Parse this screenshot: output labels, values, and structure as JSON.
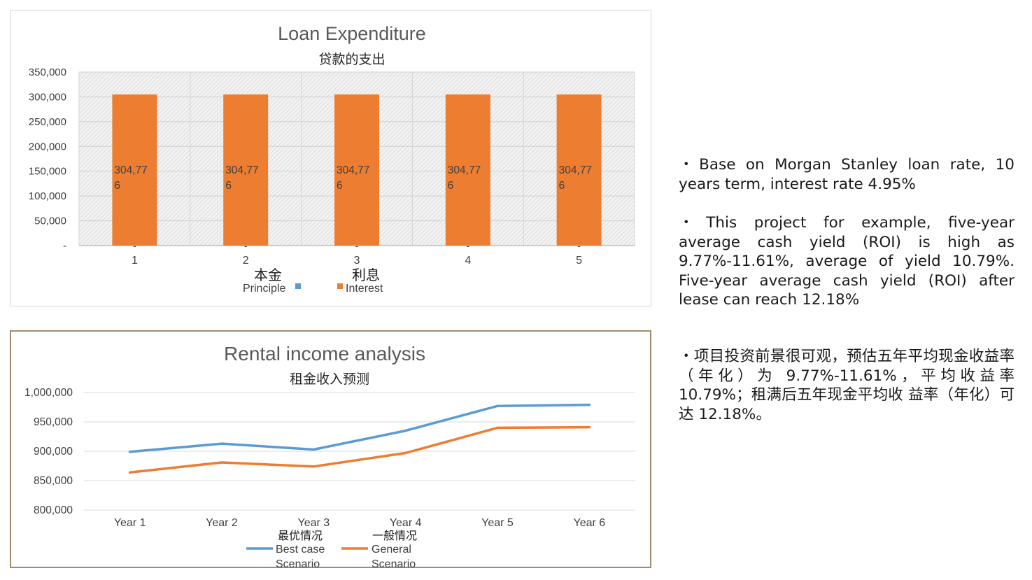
{
  "chart_data": [
    {
      "type": "bar",
      "title": "Loan Expenditure",
      "subtitle": "贷款的支出",
      "categories": [
        "1",
        "2",
        "3",
        "4",
        "5"
      ],
      "category_sublabels": [
        "-",
        "-",
        "-",
        "-",
        "-"
      ],
      "ylim": [
        0,
        350000
      ],
      "yticks": [
        0,
        50000,
        100000,
        150000,
        200000,
        250000,
        300000,
        350000
      ],
      "ytick_labels": [
        "-",
        "50,000",
        "100,000",
        "150,000",
        "200,000",
        "250,000",
        "300,000",
        "350,000"
      ],
      "grid": true,
      "series": [
        {
          "name": "Principle",
          "name_cn": "本金",
          "color": "#5b9bd5",
          "values": [
            0,
            0,
            0,
            0,
            0
          ]
        },
        {
          "name": "Interest",
          "name_cn": "利息",
          "color": "#ed7d31",
          "values": [
            304776,
            304776,
            304776,
            304776,
            304776
          ],
          "data_labels": [
            [
              "304,77",
              "6"
            ],
            [
              "304,77",
              "6"
            ],
            [
              "304,77",
              "6"
            ],
            [
              "304,77",
              "6"
            ],
            [
              "304,77",
              "6"
            ]
          ]
        }
      ],
      "legend_position": "bottom"
    },
    {
      "type": "line",
      "title": "Rental income analysis",
      "subtitle": "租金收入预测",
      "categories": [
        "Year 1",
        "Year 2",
        "Year 3",
        "Year 4",
        "Year 5",
        "Year 6"
      ],
      "ylim": [
        800000,
        1000000
      ],
      "yticks": [
        800000,
        850000,
        900000,
        950000,
        1000000
      ],
      "ytick_labels": [
        "800,000",
        "850,000",
        "900,000",
        "950,000",
        "1,000,000"
      ],
      "grid": true,
      "series": [
        {
          "name_cn": "最优情况",
          "name": [
            "Best case",
            "Scenario"
          ],
          "color": "#5b9bd5",
          "values": [
            899000,
            913000,
            903000,
            935000,
            977000,
            979000
          ]
        },
        {
          "name_cn": "一般情况",
          "name": [
            "General",
            "Scenario"
          ],
          "color": "#ed7d31",
          "values": [
            864000,
            881000,
            874000,
            897000,
            940000,
            941000
          ]
        }
      ],
      "legend_position": "bottom"
    }
  ],
  "notes": {
    "bullet_1": "・Base on Morgan Stanley loan rate, 10 years term, interest rate 4.95%",
    "bullet_2": "・This project for example, five-year average cash yield (ROI) is high as 9.77%-11.61%, average of yield 10.79%. Five-year average cash yield (ROI) after lease can reach 12.18%",
    "bullet_3": "・项目投资前景很可观，预估五年平均现金收益率（年化）为 9.77%-11.61%，平均收益率 10.79%；租满后五年现金平均收 益率（年化）可达 12.18%。"
  }
}
